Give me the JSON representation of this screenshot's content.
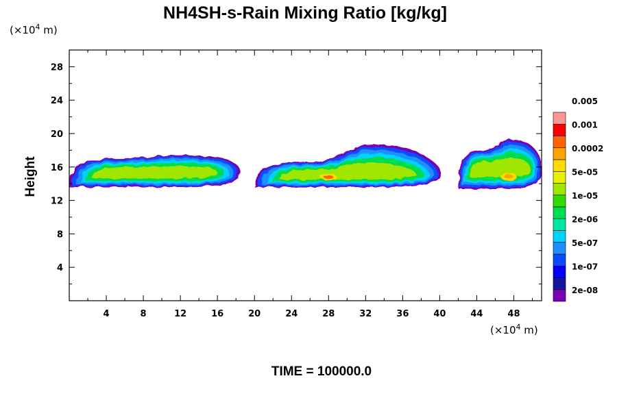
{
  "chart_data": {
    "type": "heatmap",
    "title": "NH4SH-s-Rain Mixing Ratio [kg/kg]",
    "ylabel": "Height",
    "x_unit": {
      "prefix": "(×10",
      "exp": "4",
      "suffix": " m)"
    },
    "y_unit": {
      "prefix": "(×10",
      "exp": "4",
      "suffix": " m)"
    },
    "xlim": [
      0,
      51
    ],
    "ylim": [
      0,
      30
    ],
    "x_ticks": [
      "4",
      "8",
      "12",
      "16",
      "20",
      "24",
      "28",
      "32",
      "36",
      "40",
      "44",
      "48"
    ],
    "y_ticks": [
      "4",
      "8",
      "12",
      "16",
      "20",
      "24",
      "28"
    ],
    "colorbar": {
      "colors": [
        "#7a00b4",
        "#1414a0",
        "#0000ff",
        "#0a4bff",
        "#1e90ff",
        "#00d2ff",
        "#00e6a0",
        "#00dc50",
        "#32dc00",
        "#a0e600",
        "#e6f000",
        "#ffdc00",
        "#ffa500",
        "#ff6400",
        "#ff0000",
        "#ff9696"
      ],
      "labels": [
        "2e-08",
        "1e-07",
        "5e-07",
        "2e-06",
        "1e-05",
        "5e-05",
        "0.0002",
        "0.001",
        "0.005"
      ]
    },
    "cloud_bands": [
      {
        "x0": 0,
        "x1": 18.5,
        "bottom": 13.6,
        "top": 17.0,
        "peak": 17.4
      },
      {
        "x0": 20,
        "x1": 40.2,
        "bottom": 13.6,
        "top": 16.6,
        "peak": 18.7
      },
      {
        "x0": 42,
        "x1": 51,
        "bottom": 13.4,
        "top": 18.0,
        "peak": 19.3
      }
    ],
    "max_regions": [
      {
        "x": 28,
        "y": 14.8,
        "label": "0.001"
      },
      {
        "x": 47.5,
        "y": 14.8,
        "label": "0.0002"
      }
    ],
    "time_label": "TIME = 100000.0"
  }
}
